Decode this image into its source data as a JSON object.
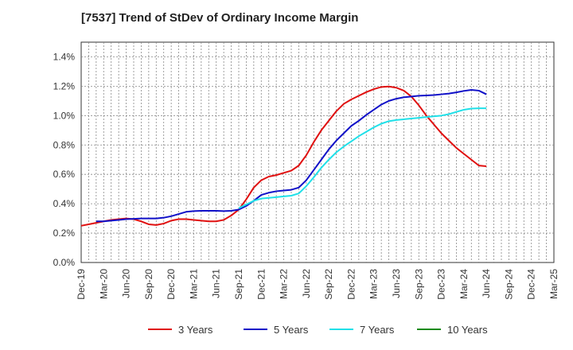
{
  "chart_data": {
    "type": "line",
    "title": "[7537]  Trend of StDev of Ordinary Income Margin",
    "xlabel": "",
    "ylabel": "",
    "ylim": [
      0,
      1.5
    ],
    "yticks": [
      0,
      0.2,
      0.4,
      0.6,
      0.8,
      1.0,
      1.2,
      1.4
    ],
    "ytick_labels": [
      "0.0%",
      "0.2%",
      "0.4%",
      "0.6%",
      "0.8%",
      "1.0%",
      "1.2%",
      "1.4%"
    ],
    "xtick_labels": [
      "Dec-19",
      "Mar-20",
      "Jun-20",
      "Sep-20",
      "Dec-20",
      "Mar-21",
      "Jun-21",
      "Sep-21",
      "Dec-21",
      "Mar-22",
      "Jun-22",
      "Sep-22",
      "Dec-22",
      "Mar-23",
      "Jun-23",
      "Sep-23",
      "Dec-23",
      "Mar-24",
      "Jun-24",
      "Sep-24",
      "Dec-24",
      "Mar-25"
    ],
    "grid": true,
    "legend_position": "bottom",
    "series": [
      {
        "name": "3 Years",
        "color": "#e01010",
        "points": [
          [
            0,
            0.25
          ],
          [
            1,
            0.26
          ],
          [
            2,
            0.27
          ],
          [
            3,
            0.28
          ],
          [
            4,
            0.29
          ],
          [
            5,
            0.295
          ],
          [
            6,
            0.3
          ],
          [
            7,
            0.295
          ],
          [
            8,
            0.28
          ],
          [
            9,
            0.26
          ],
          [
            10,
            0.255
          ],
          [
            11,
            0.265
          ],
          [
            12,
            0.285
          ],
          [
            13,
            0.295
          ],
          [
            14,
            0.295
          ],
          [
            15,
            0.29
          ],
          [
            16,
            0.285
          ],
          [
            17,
            0.28
          ],
          [
            18,
            0.28
          ],
          [
            19,
            0.29
          ],
          [
            20,
            0.32
          ],
          [
            21,
            0.36
          ],
          [
            22,
            0.43
          ],
          [
            23,
            0.51
          ],
          [
            24,
            0.56
          ],
          [
            25,
            0.585
          ],
          [
            26,
            0.595
          ],
          [
            27,
            0.61
          ],
          [
            28,
            0.625
          ],
          [
            29,
            0.66
          ],
          [
            30,
            0.73
          ],
          [
            31,
            0.82
          ],
          [
            32,
            0.9
          ],
          [
            33,
            0.965
          ],
          [
            34,
            1.03
          ],
          [
            35,
            1.08
          ],
          [
            36,
            1.11
          ],
          [
            37,
            1.135
          ],
          [
            38,
            1.16
          ],
          [
            39,
            1.18
          ],
          [
            40,
            1.195
          ],
          [
            41,
            1.198
          ],
          [
            42,
            1.19
          ],
          [
            43,
            1.17
          ],
          [
            44,
            1.13
          ],
          [
            45,
            1.07
          ],
          [
            46,
            1.0
          ],
          [
            47,
            0.94
          ],
          [
            48,
            0.88
          ],
          [
            49,
            0.83
          ],
          [
            50,
            0.78
          ],
          [
            51,
            0.74
          ],
          [
            52,
            0.7
          ],
          [
            53,
            0.66
          ],
          [
            54,
            0.655
          ]
        ]
      },
      {
        "name": "5 Years",
        "color": "#1010c8",
        "points": [
          [
            2,
            0.28
          ],
          [
            3,
            0.28
          ],
          [
            4,
            0.285
          ],
          [
            5,
            0.29
          ],
          [
            6,
            0.295
          ],
          [
            7,
            0.297
          ],
          [
            8,
            0.3
          ],
          [
            9,
            0.3
          ],
          [
            10,
            0.3
          ],
          [
            11,
            0.305
          ],
          [
            12,
            0.315
          ],
          [
            13,
            0.33
          ],
          [
            14,
            0.345
          ],
          [
            15,
            0.35
          ],
          [
            16,
            0.352
          ],
          [
            17,
            0.352
          ],
          [
            18,
            0.352
          ],
          [
            19,
            0.35
          ],
          [
            20,
            0.352
          ],
          [
            21,
            0.36
          ],
          [
            22,
            0.385
          ],
          [
            23,
            0.42
          ],
          [
            24,
            0.46
          ],
          [
            25,
            0.475
          ],
          [
            26,
            0.485
          ],
          [
            27,
            0.49
          ],
          [
            28,
            0.495
          ],
          [
            29,
            0.51
          ],
          [
            30,
            0.56
          ],
          [
            31,
            0.63
          ],
          [
            32,
            0.7
          ],
          [
            33,
            0.77
          ],
          [
            34,
            0.83
          ],
          [
            35,
            0.88
          ],
          [
            36,
            0.93
          ],
          [
            37,
            0.965
          ],
          [
            38,
            1.005
          ],
          [
            39,
            1.04
          ],
          [
            40,
            1.075
          ],
          [
            41,
            1.1
          ],
          [
            42,
            1.115
          ],
          [
            43,
            1.125
          ],
          [
            44,
            1.13
          ],
          [
            45,
            1.135
          ],
          [
            46,
            1.137
          ],
          [
            47,
            1.14
          ],
          [
            48,
            1.145
          ],
          [
            49,
            1.15
          ],
          [
            50,
            1.158
          ],
          [
            51,
            1.168
          ],
          [
            52,
            1.175
          ],
          [
            53,
            1.17
          ],
          [
            54,
            1.145
          ]
        ]
      },
      {
        "name": "7 Years",
        "color": "#20e0e8",
        "points": [
          [
            21,
            0.37
          ],
          [
            22,
            0.395
          ],
          [
            23,
            0.42
          ],
          [
            24,
            0.435
          ],
          [
            25,
            0.44
          ],
          [
            26,
            0.445
          ],
          [
            27,
            0.45
          ],
          [
            28,
            0.455
          ],
          [
            29,
            0.47
          ],
          [
            30,
            0.52
          ],
          [
            31,
            0.58
          ],
          [
            32,
            0.645
          ],
          [
            33,
            0.7
          ],
          [
            34,
            0.75
          ],
          [
            35,
            0.79
          ],
          [
            36,
            0.825
          ],
          [
            37,
            0.86
          ],
          [
            38,
            0.89
          ],
          [
            39,
            0.92
          ],
          [
            40,
            0.945
          ],
          [
            41,
            0.962
          ],
          [
            42,
            0.97
          ],
          [
            43,
            0.975
          ],
          [
            44,
            0.98
          ],
          [
            45,
            0.985
          ],
          [
            46,
            0.99
          ],
          [
            47,
            0.995
          ],
          [
            48,
            1.0
          ],
          [
            49,
            1.01
          ],
          [
            50,
            1.025
          ],
          [
            51,
            1.04
          ],
          [
            52,
            1.048
          ],
          [
            53,
            1.05
          ],
          [
            54,
            1.05
          ]
        ]
      },
      {
        "name": "10 Years",
        "color": "#1a8a1a",
        "points": []
      }
    ]
  }
}
